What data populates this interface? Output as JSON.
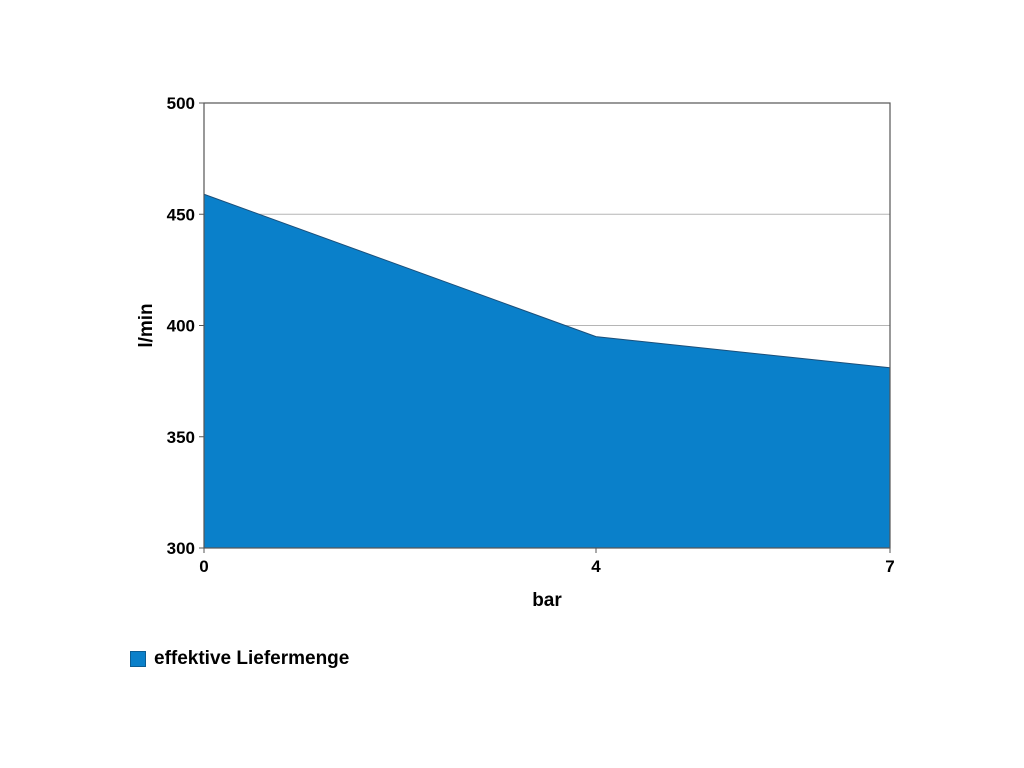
{
  "chart_data": {
    "type": "area",
    "x": [
      0,
      4,
      7
    ],
    "series": [
      {
        "name": "effektive Liefermenge",
        "values": [
          459,
          395,
          381
        ],
        "color": "#0a80ca"
      }
    ],
    "xlabel": "bar",
    "ylabel": "l/min",
    "xlim": [
      0,
      7
    ],
    "ylim": [
      300,
      500
    ],
    "x_ticks": [
      "0",
      "4",
      "7"
    ],
    "y_ticks": [
      "300",
      "350",
      "400",
      "450",
      "500"
    ],
    "grid": "horizontal",
    "legend_position": "bottom-left"
  }
}
